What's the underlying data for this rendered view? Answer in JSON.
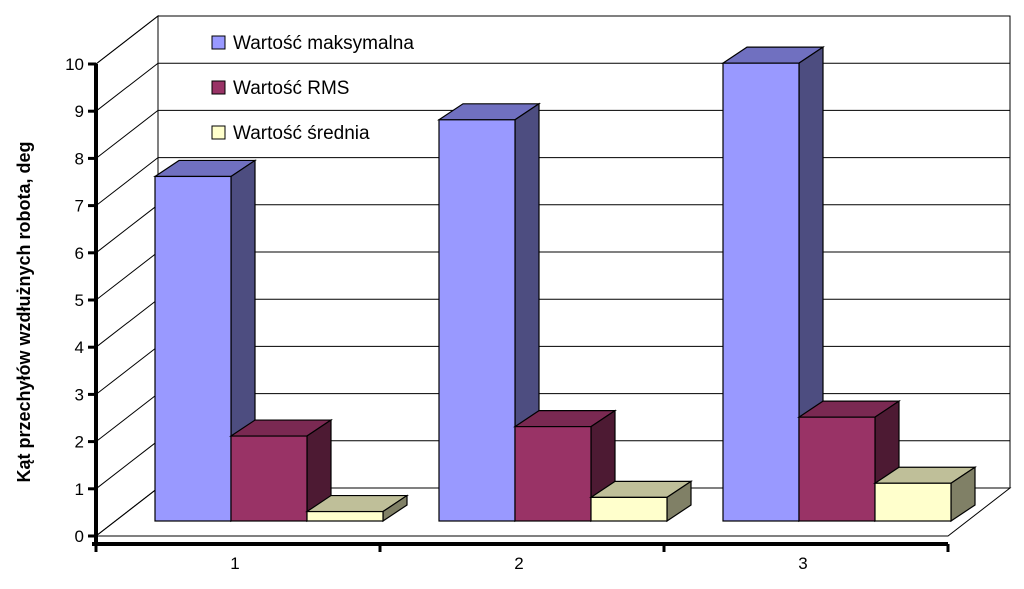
{
  "chart_data": {
    "type": "bar",
    "style": "3d-clustered-column",
    "title": "",
    "xlabel": "",
    "ylabel": "Kąt przechyłów wzdłużnych robota, deg",
    "categories": [
      "1",
      "2",
      "3"
    ],
    "series": [
      {
        "name": "Wartość maksymalna",
        "values": [
          7.3,
          8.5,
          9.7
        ]
      },
      {
        "name": "Wartość RMS",
        "values": [
          1.8,
          2.0,
          2.2
        ]
      },
      {
        "name": "Wartość średnia",
        "values": [
          0.2,
          0.5,
          0.8
        ]
      }
    ],
    "ylim": [
      0,
      10
    ],
    "yticks": [
      "0",
      "1",
      "2",
      "3",
      "4",
      "5",
      "6",
      "7",
      "8",
      "9",
      "10"
    ],
    "grid": true,
    "legend_position": "top-left",
    "colors": {
      "series": [
        {
          "front": "#9999ff",
          "side": "#4d4d80",
          "top": "#7070c0"
        },
        {
          "front": "#993366",
          "side": "#4d1a33",
          "top": "#7a2952"
        },
        {
          "front": "#ffffcc",
          "side": "#808066",
          "top": "#bfbf99"
        }
      ],
      "grid": "#000000",
      "wall": "#ffffff",
      "axis": "#000000"
    }
  }
}
